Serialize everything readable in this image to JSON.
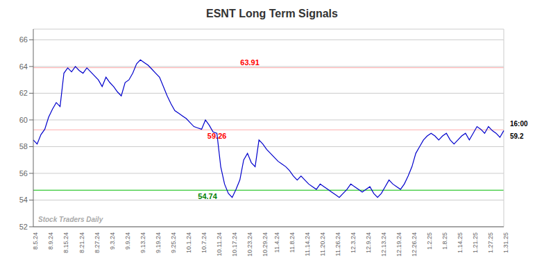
{
  "chart_data": {
    "type": "line",
    "title": "ESNT Long Term Signals",
    "categories": [
      "8.5.24",
      null,
      null,
      null,
      "8.9.24",
      null,
      null,
      null,
      "8.15.24",
      null,
      null,
      null,
      "8.21.24",
      null,
      null,
      null,
      "8.27.24",
      null,
      null,
      null,
      "9.3.24",
      null,
      null,
      null,
      "9.9.24",
      null,
      null,
      null,
      "9.13.24",
      null,
      null,
      null,
      "9.19.24",
      null,
      null,
      null,
      "9.25.24",
      null,
      null,
      null,
      "10.1.24",
      null,
      null,
      null,
      "10.7.24",
      null,
      null,
      null,
      "10.11.24",
      null,
      null,
      null,
      "10.17.24",
      null,
      null,
      null,
      "10.23.24",
      null,
      null,
      null,
      "10.29.24",
      null,
      null,
      "11.4.24",
      null,
      null,
      null,
      "11.8.24",
      null,
      null,
      null,
      "11.14.24",
      null,
      null,
      null,
      "11.20.24",
      null,
      null,
      null,
      "11.26.24",
      null,
      null,
      null,
      "12.3.24",
      null,
      null,
      null,
      "12.9.24",
      null,
      null,
      null,
      "12.13.24",
      null,
      null,
      null,
      "12.19.24",
      null,
      null,
      null,
      "12.26.24",
      null,
      null,
      null,
      "1.2.25",
      null,
      null,
      null,
      "1.8.25",
      null,
      null,
      null,
      "1.14.25",
      null,
      null,
      null,
      "1.21.25",
      null,
      null,
      null,
      "1.27.25",
      null,
      null,
      null,
      "1.31.25"
    ],
    "values": [
      58.5,
      58.2,
      58.9,
      59.3,
      60.2,
      60.8,
      61.3,
      61.0,
      63.5,
      63.9,
      63.6,
      64.0,
      63.7,
      63.5,
      63.9,
      63.6,
      63.3,
      63.0,
      62.5,
      63.2,
      62.8,
      62.5,
      62.1,
      61.8,
      62.8,
      63.0,
      63.5,
      64.2,
      64.5,
      64.3,
      64.1,
      63.8,
      63.5,
      63.2,
      62.5,
      61.8,
      61.2,
      60.7,
      60.5,
      60.3,
      60.1,
      59.8,
      59.5,
      59.4,
      59.3,
      60.0,
      59.6,
      59.1,
      59.0,
      56.5,
      55.2,
      54.5,
      54.2,
      54.8,
      55.5,
      57.0,
      57.5,
      56.8,
      56.5,
      58.5,
      58.2,
      57.8,
      57.5,
      57.2,
      56.9,
      56.7,
      56.5,
      56.2,
      55.8,
      55.5,
      55.8,
      55.5,
      55.2,
      55.0,
      54.8,
      55.2,
      55.0,
      54.8,
      54.6,
      54.4,
      54.2,
      54.5,
      54.8,
      55.2,
      55.0,
      54.8,
      54.6,
      54.8,
      55.0,
      54.5,
      54.2,
      54.5,
      55.0,
      55.5,
      55.2,
      55.0,
      54.8,
      55.2,
      55.8,
      56.5,
      57.5,
      58.0,
      58.5,
      58.8,
      59.0,
      58.8,
      58.5,
      58.8,
      59.0,
      58.5,
      58.2,
      58.5,
      58.8,
      59.0,
      58.5,
      59.0,
      59.5,
      59.3,
      59.0,
      59.5,
      59.2,
      59.0,
      58.7,
      59.2
    ],
    "color": "#0000cc",
    "ylim": [
      52,
      66.8
    ],
    "yticks": [
      52,
      54,
      56,
      58,
      60,
      62,
      64,
      66
    ],
    "grid": true,
    "reference_lines": [
      {
        "value": 63.91,
        "label": "63.91",
        "color": "#ffaaaa",
        "label_color": "red"
      },
      {
        "value": 59.26,
        "label": "59.26",
        "color": "#ffaaaa",
        "label_color": "red"
      },
      {
        "value": 54.74,
        "label": "54.74",
        "color": "#00bb00",
        "label_color": "green"
      }
    ],
    "annotations": [
      "16:00",
      "59.2",
      "Stock Traders Daily"
    ]
  }
}
